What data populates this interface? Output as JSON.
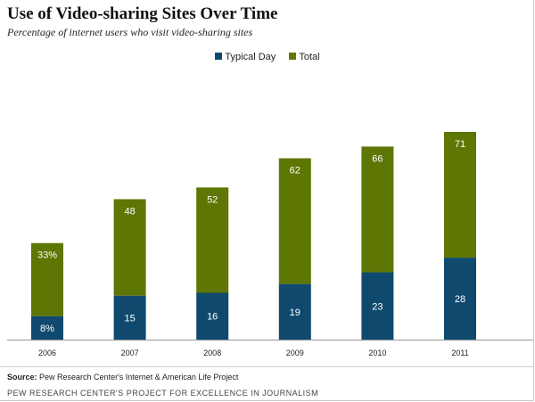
{
  "header": {
    "title": "Use of Video-sharing Sites Over Time",
    "subtitle": "Percentage of internet users who visit video-sharing sites"
  },
  "legend": {
    "typical_day": "Typical Day",
    "total": "Total"
  },
  "colors": {
    "typical_day": "#0f4a6e",
    "total": "#5e7603",
    "label_text": "#ffffff",
    "axis": "#999999"
  },
  "chart_data": {
    "type": "bar",
    "stacked": true,
    "title": "Use of Video-sharing Sites Over Time",
    "subtitle": "Percentage of internet users who visit video-sharing sites",
    "categories": [
      "2006",
      "2007",
      "2008",
      "2009",
      "2010",
      "2011"
    ],
    "series": [
      {
        "name": "Typical Day",
        "values": [
          8,
          15,
          16,
          19,
          23,
          28
        ],
        "labels": [
          "8%",
          "15",
          "16",
          "19",
          "23",
          "28"
        ]
      },
      {
        "name": "Total",
        "values": [
          33,
          48,
          52,
          62,
          66,
          71
        ],
        "labels": [
          "33%",
          "48",
          "52",
          "62",
          "66",
          "71"
        ]
      }
    ],
    "ylim": [
      0,
      71
    ],
    "legend_position": "top-center",
    "grid": false
  },
  "source": {
    "label": "Source:",
    "text": "Pew Research Center's Internet & American Life Project"
  },
  "footer": "PEW RESEARCH CENTER'S PROJECT FOR EXCELLENCE IN JOURNALISM"
}
